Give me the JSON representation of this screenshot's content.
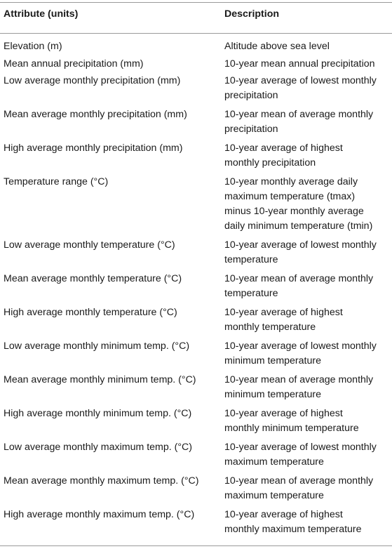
{
  "table": {
    "headers": {
      "attribute": "Attribute (units)",
      "description": "Description"
    },
    "rows": [
      {
        "attribute": "Elevation (m)",
        "description": [
          "Altitude above sea level"
        ]
      },
      {
        "attribute": "Mean annual precipitation (mm)",
        "description": [
          "10-year mean annual precipitation"
        ]
      },
      {
        "attribute": "Low average monthly precipitation (mm)",
        "description": [
          "10-year average of lowest monthly",
          "precipitation"
        ]
      },
      {
        "attribute": "Mean average monthly precipitation (mm)",
        "description": [
          "10-year mean of average monthly",
          "precipitation"
        ]
      },
      {
        "attribute": "High average monthly precipitation (mm)",
        "description": [
          "10-year average of highest",
          "monthly precipitation"
        ]
      },
      {
        "attribute": "Temperature range (°C)",
        "description": [
          "10-year monthly average daily",
          "maximum temperature (tmax)",
          "minus 10-year monthly average",
          "daily minimum temperature (tmin)"
        ]
      },
      {
        "attribute": "Low average monthly temperature (°C)",
        "description": [
          "10-year average of lowest monthly",
          "temperature"
        ]
      },
      {
        "attribute": "Mean average monthly temperature (°C)",
        "description": [
          "10-year mean of average monthly",
          "temperature"
        ]
      },
      {
        "attribute": "High average monthly temperature (°C)",
        "description": [
          "10-year average of highest",
          "monthly temperature"
        ]
      },
      {
        "attribute": "Low average monthly minimum temp. (°C)",
        "description": [
          "10-year average of lowest monthly",
          "minimum temperature"
        ]
      },
      {
        "attribute": "Mean average monthly minimum temp. (°C)",
        "description": [
          "10-year mean of average monthly",
          "minimum temperature"
        ]
      },
      {
        "attribute": "High average monthly minimum temp. (°C)",
        "description": [
          "10-year average of highest",
          "monthly minimum temperature"
        ]
      },
      {
        "attribute": "Low average monthly maximum temp. (°C)",
        "description": [
          "10-year average of lowest monthly",
          "maximum temperature"
        ]
      },
      {
        "attribute": "Mean average monthly maximum temp. (°C)",
        "description": [
          "10-year mean of average monthly",
          "maximum temperature"
        ]
      },
      {
        "attribute": "High average monthly maximum temp. (°C)",
        "description": [
          "10-year average of highest",
          "monthly maximum temperature"
        ]
      }
    ]
  }
}
